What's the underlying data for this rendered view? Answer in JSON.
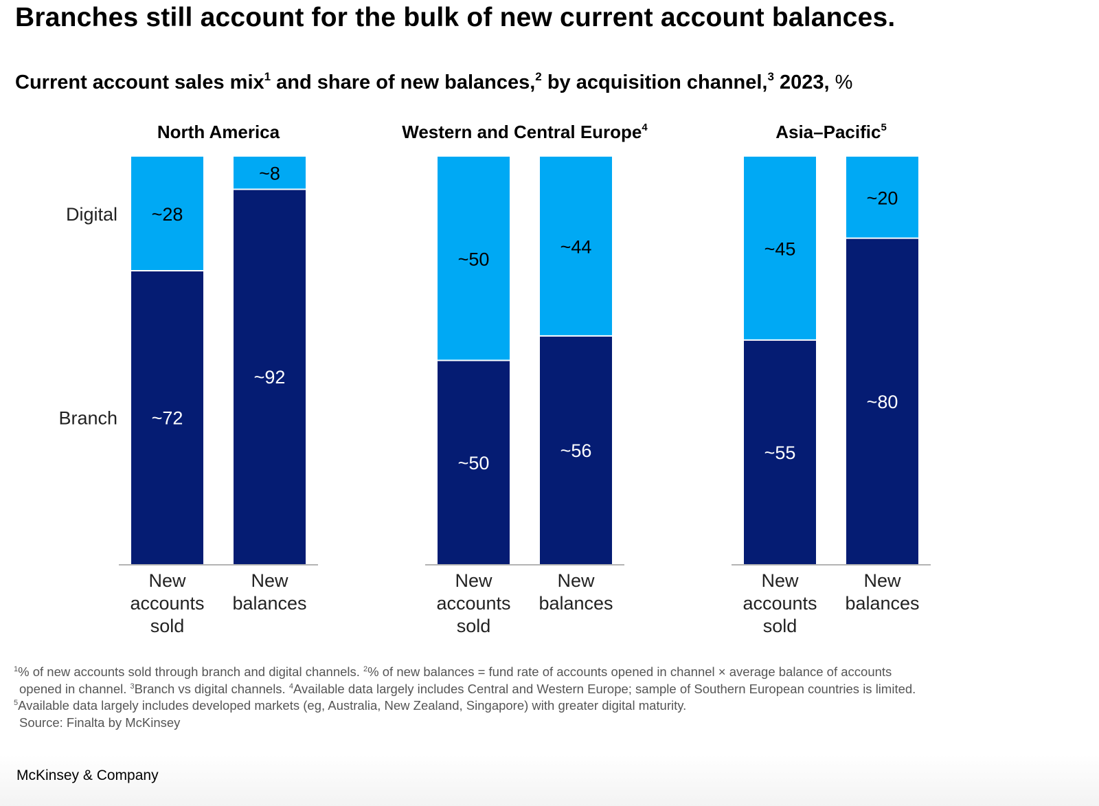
{
  "headline": "Branches still account for the bulk of new current account balances.",
  "subtitle": {
    "part1": "Current account sales mix",
    "sup1": "1",
    "part2": " and share of new balances,",
    "sup2": "2",
    "part3": " by acquisition channel,",
    "sup3": "3",
    "part4": " 2023,",
    "unit": " %"
  },
  "colors": {
    "digital": "#00A9F4",
    "branch": "#051C73",
    "axis": "#b3b3b3"
  },
  "chart_data": {
    "type": "bar",
    "stacked": true,
    "series_names": [
      "Branch",
      "Digital"
    ],
    "ylim": [
      0,
      100
    ],
    "panels": [
      {
        "title": "North America",
        "title_sup": "",
        "categories": [
          "New accounts sold",
          "New balances"
        ],
        "category_lines": [
          [
            "New",
            "accounts",
            "sold"
          ],
          [
            "New",
            "balances"
          ]
        ],
        "series": [
          {
            "name": "Branch",
            "values": [
              72,
              92
            ],
            "labels": [
              "~72",
              "~92"
            ]
          },
          {
            "name": "Digital",
            "values": [
              28,
              8
            ],
            "labels": [
              "~28",
              "~8"
            ]
          }
        ]
      },
      {
        "title": "Western and Central Europe",
        "title_sup": "4",
        "categories": [
          "New accounts sold",
          "New balances"
        ],
        "category_lines": [
          [
            "New",
            "accounts",
            "sold"
          ],
          [
            "New",
            "balances"
          ]
        ],
        "series": [
          {
            "name": "Branch",
            "values": [
              50,
              56
            ],
            "labels": [
              "~50",
              "~56"
            ]
          },
          {
            "name": "Digital",
            "values": [
              50,
              44
            ],
            "labels": [
              "~50",
              "~44"
            ]
          }
        ]
      },
      {
        "title": "Asia–Pacific",
        "title_sup": "5",
        "categories": [
          "New accounts sold",
          "New balances"
        ],
        "category_lines": [
          [
            "New",
            "accounts",
            "sold"
          ],
          [
            "New",
            "balances"
          ]
        ],
        "series": [
          {
            "name": "Branch",
            "values": [
              55,
              80
            ],
            "labels": [
              "~55",
              "~80"
            ]
          },
          {
            "name": "Digital",
            "values": [
              45,
              20
            ],
            "labels": [
              "~45",
              "~20"
            ]
          }
        ]
      }
    ]
  },
  "footnotes": [
    [
      {
        "sup": "1",
        "text": "% of new accounts sold through branch and digital channels. "
      },
      {
        "sup": "2",
        "text": "% of new balances = fund rate of accounts opened in channel × average balance of accounts"
      }
    ],
    [
      {
        "sup": "",
        "text": "opened in channel. "
      },
      {
        "sup": "3",
        "text": "Branch vs digital channels. "
      },
      {
        "sup": "4",
        "text": "Available data largely includes Central and Western Europe; sample of Southern European countries is limited."
      }
    ],
    [
      {
        "sup": "5",
        "text": "Available data largely includes developed markets (eg, Australia, New Zealand, Singapore) with greater digital maturity."
      }
    ],
    [
      {
        "sup": "",
        "text": "Source: Finalta by McKinsey"
      }
    ]
  ],
  "brand": "McKinsey & Company"
}
